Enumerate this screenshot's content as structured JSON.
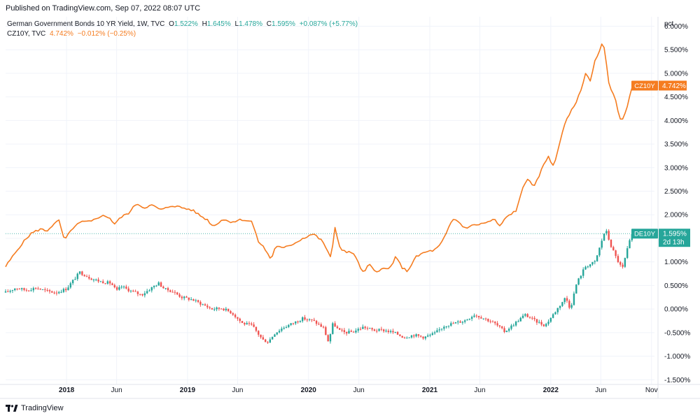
{
  "header": {
    "published": "Published on TradingView.com, Sep 07, 2022 08:07 UTC"
  },
  "legend": {
    "de": {
      "name": "German Government Bonds 10 YR Yield, 1W, TVC",
      "o_label": "O",
      "o": "1.522%",
      "h_label": "H",
      "h": "1.645%",
      "l_label": "L",
      "l": "1.478%",
      "c_label": "C",
      "c": "1.595%",
      "change": "+0.087% (+5.77%)"
    },
    "cz": {
      "name": "CZ10Y, TVC",
      "value": "4.742%",
      "change": "−0.012% (−0.25%)"
    }
  },
  "footer": {
    "brand": "TradingView"
  },
  "colors": {
    "orange": "#f57c20",
    "up": "#26a69a",
    "down": "#ef5350",
    "dotted": "#26a69a",
    "grid": "#f0f3fa"
  },
  "chart_data": {
    "type": "line",
    "y_unit": "pct",
    "ylim": [
      -1.6,
      6.2
    ],
    "y_ticks": [
      "6.000%",
      "5.500%",
      "5.000%",
      "4.500%",
      "4.000%",
      "3.500%",
      "3.000%",
      "2.500%",
      "2.000%",
      "1.500%",
      "1.000%",
      "0.500%",
      "0.000%",
      "-0.500%",
      "-1.000%",
      "-1.500%"
    ],
    "x_start": "2017-07-01",
    "x_end": "2022-11-10",
    "x_ticks": [
      {
        "date": "2018-01-01",
        "label": "2018",
        "bold": true
      },
      {
        "date": "2018-06-01",
        "label": "Jun",
        "bold": false
      },
      {
        "date": "2019-01-01",
        "label": "2019",
        "bold": true
      },
      {
        "date": "2019-06-01",
        "label": "Jun",
        "bold": false
      },
      {
        "date": "2020-01-01",
        "label": "2020",
        "bold": true
      },
      {
        "date": "2020-06-01",
        "label": "Jun",
        "bold": false
      },
      {
        "date": "2021-01-01",
        "label": "2021",
        "bold": true
      },
      {
        "date": "2021-06-01",
        "label": "Jun",
        "bold": false
      },
      {
        "date": "2022-01-01",
        "label": "2022",
        "bold": true
      },
      {
        "date": "2022-06-01",
        "label": "Jun",
        "bold": false
      },
      {
        "date": "2022-11-01",
        "label": "Nov",
        "bold": false
      }
    ],
    "grid": true,
    "series": [
      {
        "name": "CZ10Y",
        "style": "line",
        "last_value_label": "4.742%",
        "points": [
          [
            "2017-07-01",
            0.9
          ],
          [
            "2017-08-15",
            1.35
          ],
          [
            "2017-09-15",
            1.6
          ],
          [
            "2017-10-15",
            1.7
          ],
          [
            "2017-11-01",
            1.65
          ],
          [
            "2017-11-20",
            1.78
          ],
          [
            "2017-12-10",
            1.88
          ],
          [
            "2017-12-25",
            1.45
          ],
          [
            "2018-01-20",
            1.72
          ],
          [
            "2018-02-15",
            1.85
          ],
          [
            "2018-03-15",
            1.85
          ],
          [
            "2018-04-15",
            1.98
          ],
          [
            "2018-05-10",
            1.95
          ],
          [
            "2018-05-25",
            1.8
          ],
          [
            "2018-06-15",
            1.95
          ],
          [
            "2018-07-10",
            2.05
          ],
          [
            "2018-08-01",
            2.25
          ],
          [
            "2018-08-20",
            2.15
          ],
          [
            "2018-09-15",
            2.2
          ],
          [
            "2018-10-15",
            2.1
          ],
          [
            "2018-11-15",
            2.2
          ],
          [
            "2018-12-15",
            2.15
          ],
          [
            "2019-01-15",
            2.1
          ],
          [
            "2019-02-15",
            1.95
          ],
          [
            "2019-03-01",
            1.9
          ],
          [
            "2019-03-20",
            1.75
          ],
          [
            "2019-04-15",
            1.9
          ],
          [
            "2019-05-15",
            1.85
          ],
          [
            "2019-06-15",
            1.9
          ],
          [
            "2019-07-15",
            1.85
          ],
          [
            "2019-08-01",
            1.45
          ],
          [
            "2019-08-20",
            1.3
          ],
          [
            "2019-09-10",
            1.05
          ],
          [
            "2019-09-25",
            1.35
          ],
          [
            "2019-10-15",
            1.28
          ],
          [
            "2019-11-15",
            1.38
          ],
          [
            "2019-12-15",
            1.5
          ],
          [
            "2020-01-15",
            1.6
          ],
          [
            "2020-02-10",
            1.45
          ],
          [
            "2020-02-25",
            1.28
          ],
          [
            "2020-03-10",
            1.05
          ],
          [
            "2020-03-20",
            1.75
          ],
          [
            "2020-04-05",
            1.3
          ],
          [
            "2020-04-25",
            1.2
          ],
          [
            "2020-05-15",
            1.2
          ],
          [
            "2020-06-01",
            0.95
          ],
          [
            "2020-06-15",
            0.75
          ],
          [
            "2020-07-01",
            0.95
          ],
          [
            "2020-07-20",
            0.8
          ],
          [
            "2020-08-10",
            0.85
          ],
          [
            "2020-09-01",
            0.85
          ],
          [
            "2020-09-20",
            1.1
          ],
          [
            "2020-10-10",
            0.88
          ],
          [
            "2020-10-25",
            0.8
          ],
          [
            "2020-11-20",
            1.1
          ],
          [
            "2020-12-15",
            1.2
          ],
          [
            "2021-01-15",
            1.25
          ],
          [
            "2021-02-01",
            1.35
          ],
          [
            "2021-02-20",
            1.6
          ],
          [
            "2021-03-10",
            1.9
          ],
          [
            "2021-03-25",
            1.88
          ],
          [
            "2021-04-15",
            1.72
          ],
          [
            "2021-05-15",
            1.78
          ],
          [
            "2021-06-15",
            1.82
          ],
          [
            "2021-07-15",
            1.9
          ],
          [
            "2021-08-01",
            1.75
          ],
          [
            "2021-08-20",
            1.95
          ],
          [
            "2021-09-20",
            2.1
          ],
          [
            "2021-10-10",
            2.6
          ],
          [
            "2021-10-25",
            2.8
          ],
          [
            "2021-11-10",
            2.55
          ],
          [
            "2021-11-25",
            2.8
          ],
          [
            "2021-12-10",
            3.05
          ],
          [
            "2021-12-25",
            3.25
          ],
          [
            "2022-01-10",
            3.0
          ],
          [
            "2022-01-25",
            3.45
          ],
          [
            "2022-02-10",
            3.9
          ],
          [
            "2022-02-25",
            4.1
          ],
          [
            "2022-03-15",
            4.35
          ],
          [
            "2022-04-01",
            4.6
          ],
          [
            "2022-04-15",
            5.0
          ],
          [
            "2022-05-01",
            4.85
          ],
          [
            "2022-05-15",
            5.3
          ],
          [
            "2022-05-25",
            5.4
          ],
          [
            "2022-06-08",
            5.7
          ],
          [
            "2022-06-25",
            4.8
          ],
          [
            "2022-07-15",
            4.45
          ],
          [
            "2022-08-01",
            3.95
          ],
          [
            "2022-08-20",
            4.3
          ],
          [
            "2022-09-05",
            4.74
          ]
        ]
      },
      {
        "name": "DE10Y",
        "style": "candles",
        "last_value_label": "1.595%",
        "countdown": "2d 13h",
        "points": [
          [
            "2017-07-01",
            0.35
          ],
          [
            "2017-08-01",
            0.45
          ],
          [
            "2017-09-01",
            0.4
          ],
          [
            "2017-10-01",
            0.45
          ],
          [
            "2017-11-01",
            0.38
          ],
          [
            "2017-12-01",
            0.35
          ],
          [
            "2018-01-01",
            0.43
          ],
          [
            "2018-01-20",
            0.6
          ],
          [
            "2018-02-10",
            0.78
          ],
          [
            "2018-03-15",
            0.65
          ],
          [
            "2018-04-15",
            0.58
          ],
          [
            "2018-05-15",
            0.55
          ],
          [
            "2018-06-01",
            0.38
          ],
          [
            "2018-06-15",
            0.48
          ],
          [
            "2018-07-15",
            0.38
          ],
          [
            "2018-08-15",
            0.3
          ],
          [
            "2018-09-15",
            0.45
          ],
          [
            "2018-10-05",
            0.55
          ],
          [
            "2018-10-25",
            0.42
          ],
          [
            "2018-11-15",
            0.38
          ],
          [
            "2018-12-15",
            0.25
          ],
          [
            "2019-01-15",
            0.2
          ],
          [
            "2019-02-15",
            0.1
          ],
          [
            "2019-03-15",
            0.0
          ],
          [
            "2019-04-15",
            0.02
          ],
          [
            "2019-05-15",
            -0.08
          ],
          [
            "2019-06-15",
            -0.3
          ],
          [
            "2019-07-15",
            -0.35
          ],
          [
            "2019-08-15",
            -0.65
          ],
          [
            "2019-09-01",
            -0.7
          ],
          [
            "2019-09-20",
            -0.52
          ],
          [
            "2019-10-15",
            -0.4
          ],
          [
            "2019-11-15",
            -0.3
          ],
          [
            "2019-12-15",
            -0.2
          ],
          [
            "2020-01-15",
            -0.25
          ],
          [
            "2020-02-15",
            -0.4
          ],
          [
            "2020-03-01",
            -0.7
          ],
          [
            "2020-03-15",
            -0.3
          ],
          [
            "2020-04-01",
            -0.45
          ],
          [
            "2020-04-20",
            -0.5
          ],
          [
            "2020-05-15",
            -0.48
          ],
          [
            "2020-06-15",
            -0.38
          ],
          [
            "2020-07-15",
            -0.45
          ],
          [
            "2020-08-15",
            -0.45
          ],
          [
            "2020-09-15",
            -0.5
          ],
          [
            "2020-10-15",
            -0.6
          ],
          [
            "2020-11-15",
            -0.55
          ],
          [
            "2020-12-15",
            -0.6
          ],
          [
            "2021-01-15",
            -0.52
          ],
          [
            "2021-02-15",
            -0.35
          ],
          [
            "2021-03-15",
            -0.3
          ],
          [
            "2021-04-15",
            -0.25
          ],
          [
            "2021-05-15",
            -0.12
          ],
          [
            "2021-06-15",
            -0.2
          ],
          [
            "2021-07-15",
            -0.3
          ],
          [
            "2021-08-15",
            -0.48
          ],
          [
            "2021-09-15",
            -0.3
          ],
          [
            "2021-10-15",
            -0.12
          ],
          [
            "2021-11-15",
            -0.25
          ],
          [
            "2021-12-15",
            -0.35
          ],
          [
            "2022-01-15",
            -0.05
          ],
          [
            "2022-02-15",
            0.25
          ],
          [
            "2022-03-01",
            0.0
          ],
          [
            "2022-03-20",
            0.55
          ],
          [
            "2022-04-15",
            0.9
          ],
          [
            "2022-05-15",
            1.0
          ],
          [
            "2022-06-15",
            1.7
          ],
          [
            "2022-07-01",
            1.35
          ],
          [
            "2022-07-20",
            1.05
          ],
          [
            "2022-08-05",
            0.85
          ],
          [
            "2022-08-25",
            1.4
          ],
          [
            "2022-09-05",
            1.6
          ]
        ]
      }
    ]
  }
}
